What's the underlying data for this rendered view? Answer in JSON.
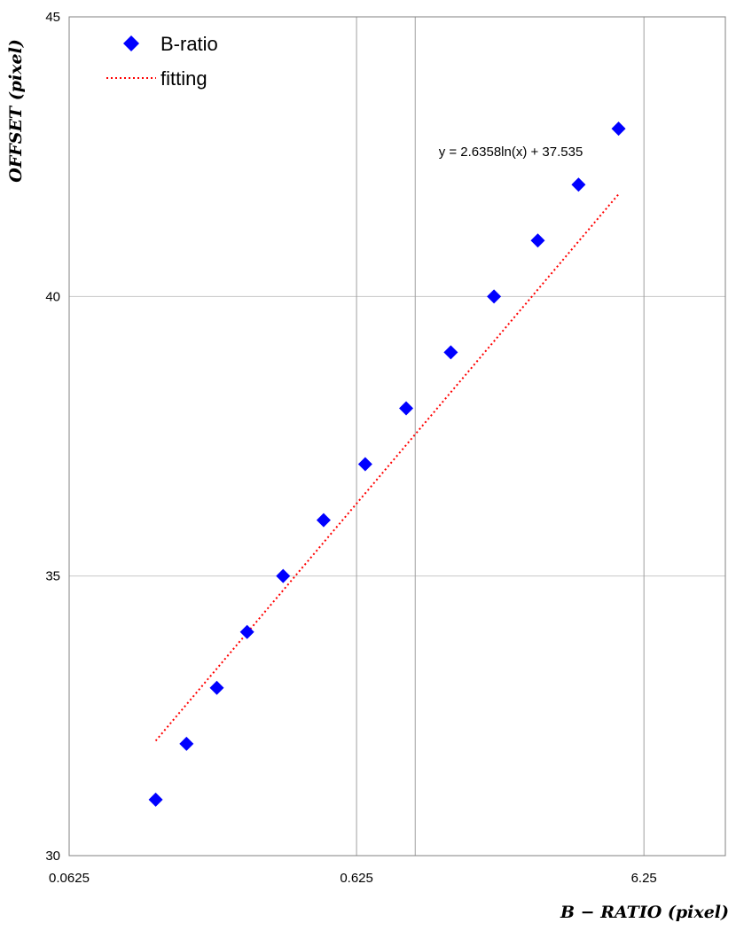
{
  "chart_data": {
    "type": "scatter",
    "xscale": "log",
    "xlabel": "B − RATIO (pixel)",
    "ylabel": "OFFSET (pixel)",
    "xlim": [
      0.0625,
      12
    ],
    "ylim": [
      30,
      45
    ],
    "x_ticks": [
      {
        "value": 0.0625,
        "label": "0.0625"
      },
      {
        "value": 0.625,
        "label": "0.625"
      },
      {
        "value": 6.25,
        "label": "6.25"
      }
    ],
    "x_extra_gridlines": [
      1.0
    ],
    "y_ticks": [
      {
        "value": 30,
        "label": "30"
      },
      {
        "value": 35,
        "label": "35"
      },
      {
        "value": 40,
        "label": "40"
      },
      {
        "value": 45,
        "label": "45"
      }
    ],
    "grid": true,
    "legend": {
      "placement": "top-left",
      "entries": [
        {
          "label": "B-ratio",
          "marker": "diamond",
          "color": "#0000FF"
        },
        {
          "label": "fitting",
          "line": "dotted",
          "color": "#FF0000"
        }
      ]
    },
    "series": [
      {
        "name": "B-ratio",
        "color": "#0000FF",
        "marker": "diamond",
        "points": [
          {
            "x": 0.125,
            "y": 31
          },
          {
            "x": 0.16,
            "y": 32
          },
          {
            "x": 0.204,
            "y": 33
          },
          {
            "x": 0.26,
            "y": 34
          },
          {
            "x": 0.347,
            "y": 35
          },
          {
            "x": 0.48,
            "y": 36
          },
          {
            "x": 0.67,
            "y": 37
          },
          {
            "x": 0.93,
            "y": 38
          },
          {
            "x": 1.33,
            "y": 39
          },
          {
            "x": 1.88,
            "y": 40
          },
          {
            "x": 2.67,
            "y": 41
          },
          {
            "x": 3.7,
            "y": 42
          },
          {
            "x": 5.1,
            "y": 43
          }
        ]
      },
      {
        "name": "fitting",
        "color": "#FF0000",
        "line": "dotted",
        "equation": {
          "a": 2.6358,
          "b": 37.535
        },
        "x_range": [
          0.125,
          5.1
        ]
      }
    ],
    "annotation": "y = 2.6358ln(x) + 37.535"
  }
}
